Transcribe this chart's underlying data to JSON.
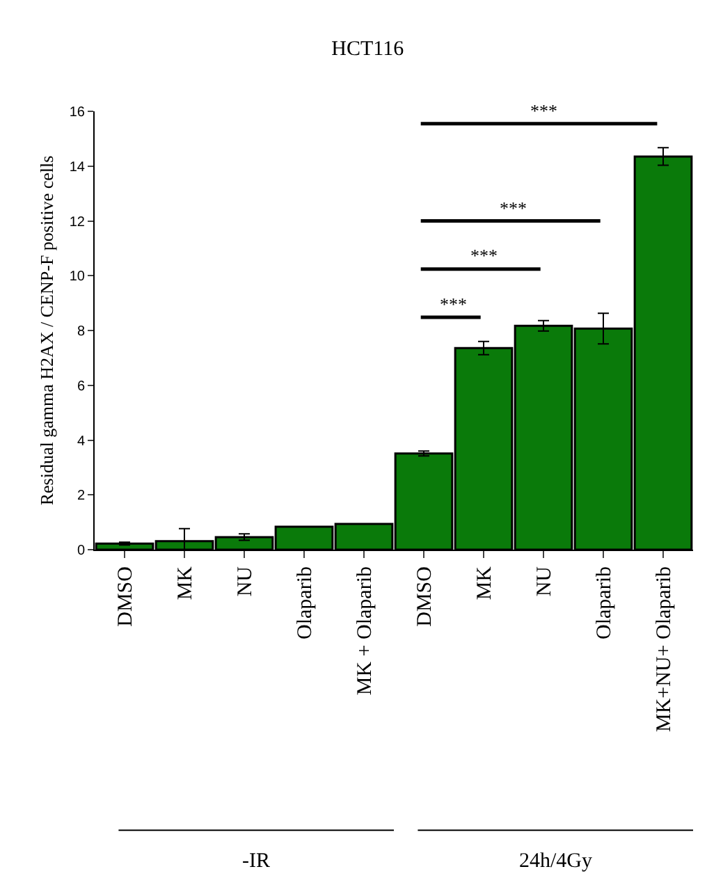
{
  "chart_data": {
    "type": "bar",
    "title": "HCT116",
    "ylabel": "Residual gamma H2AX / CENP-F positive cells",
    "categories": [
      "DMSO",
      "MK",
      "NU",
      "Olaparib",
      "MK + Olaparib",
      "DMSO",
      "MK",
      "NU",
      "Olaparib",
      "MK+NU+ Olaparib"
    ],
    "values": [
      0.22,
      0.31,
      0.46,
      0.84,
      0.94,
      3.51,
      7.36,
      8.17,
      8.07,
      14.35
    ],
    "errors": [
      0.05,
      0.46,
      0.12,
      null,
      null,
      0.09,
      0.24,
      0.19,
      0.56,
      0.32
    ],
    "color": "#0a7a0a",
    "ylim": [
      0,
      16
    ],
    "yticks": [
      0,
      2,
      4,
      6,
      8,
      10,
      12,
      14,
      16
    ],
    "grid": false,
    "annotations": [
      "***",
      "***",
      "***",
      "***",
      "-IR",
      "24h/4Gy"
    ]
  }
}
